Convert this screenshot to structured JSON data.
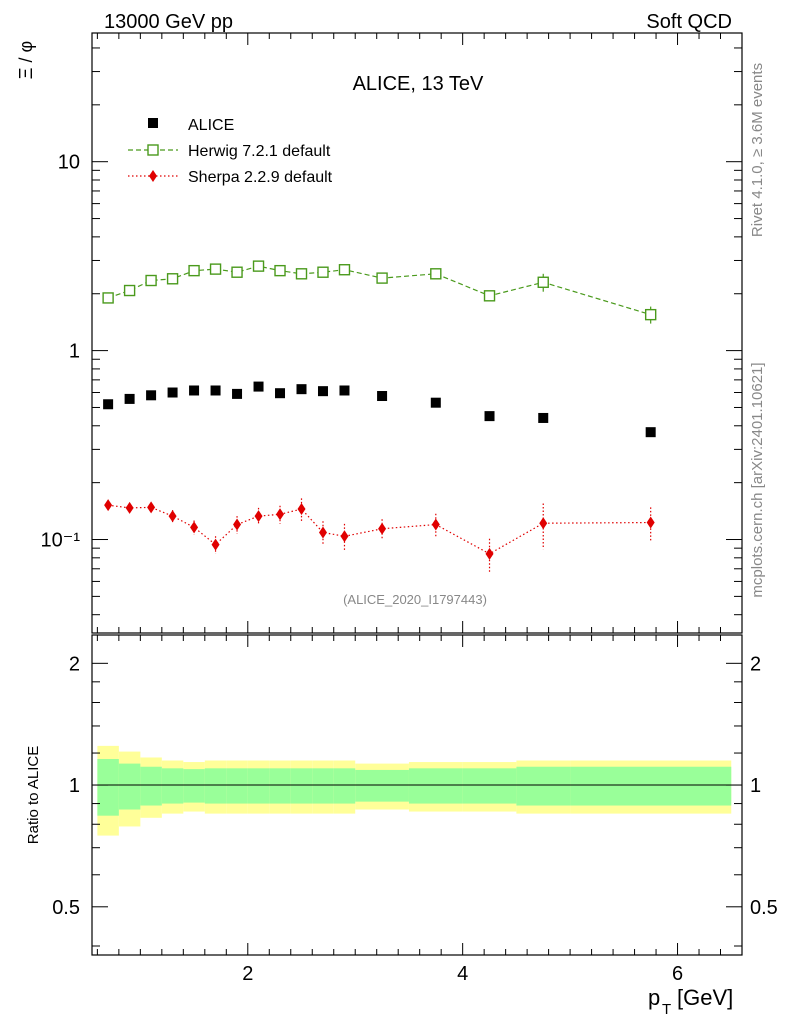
{
  "header": {
    "left": "13000 GeV pp",
    "right": "Soft QCD"
  },
  "side": {
    "rivet": "Rivet 4.1.0, ≥ 3.6M events",
    "mcplots": "mcplots.cern.ch [arXiv:2401.10621]"
  },
  "chart_data": {
    "type": "scatter",
    "title": "ALICE, 13 TeV",
    "analysis_label": "(ALICE_2020_I1797443)",
    "ylabel": "Ξ / φ",
    "xlabel_main": "p",
    "xlabel_sub": "T",
    "xlabel_unit": "[GeV]",
    "ratio_ylabel": "Ratio to ALICE",
    "xlim": [
      0.55,
      6.6
    ],
    "ylim": [
      0.032,
      48
    ],
    "yscale": "log",
    "ratio_ylim": [
      0.38,
      2.35
    ],
    "ratio_yscale": "log",
    "x_ticks": [
      2,
      4,
      6
    ],
    "x_tick_labels": [
      "2",
      "4",
      "6"
    ],
    "y_tick_labels": {
      "0.1": "10⁻¹",
      "1": "1",
      "10": "10"
    },
    "ratio_ticks": [
      0.5,
      1,
      2
    ],
    "ratio_tick_labels": [
      "0.5",
      "1",
      "2"
    ],
    "x": [
      0.7,
      0.9,
      1.1,
      1.3,
      1.5,
      1.7,
      1.9,
      2.1,
      2.3,
      2.5,
      2.7,
      2.9,
      3.25,
      3.75,
      4.25,
      4.75,
      5.75
    ],
    "x_edges": [
      0.6,
      0.8,
      1.0,
      1.2,
      1.4,
      1.6,
      1.8,
      2.0,
      2.2,
      2.4,
      2.6,
      2.8,
      3.0,
      3.5,
      4.0,
      4.5,
      5.0,
      6.5
    ],
    "series": [
      {
        "name": "ALICE",
        "style": "square",
        "color": "#000000",
        "values": [
          0.52,
          0.555,
          0.58,
          0.6,
          0.615,
          0.615,
          0.59,
          0.645,
          0.595,
          0.625,
          0.61,
          0.615,
          0.575,
          0.53,
          0.45,
          0.44,
          0.37
        ]
      },
      {
        "name": "Herwig 7.2.1 default",
        "style": "open-square-dashed",
        "color": "#4a9a1c",
        "values": [
          1.9,
          2.08,
          2.35,
          2.4,
          2.65,
          2.7,
          2.6,
          2.8,
          2.65,
          2.55,
          2.6,
          2.68,
          2.42,
          2.55,
          1.95,
          2.3,
          1.55
        ],
        "errors": [
          0.05,
          0.05,
          0.06,
          0.06,
          0.07,
          0.07,
          0.07,
          0.08,
          0.07,
          0.07,
          0.07,
          0.07,
          0.07,
          0.09,
          0.1,
          0.25,
          0.16
        ]
      },
      {
        "name": "Sherpa 2.2.9 default",
        "style": "diamond-dotted",
        "color": "#e00000",
        "values": [
          0.152,
          0.147,
          0.148,
          0.133,
          0.116,
          0.094,
          0.12,
          0.133,
          0.136,
          0.145,
          0.109,
          0.104,
          0.114,
          0.12,
          0.084,
          0.122,
          0.123
        ],
        "errors": [
          0.006,
          0.007,
          0.008,
          0.01,
          0.01,
          0.01,
          0.013,
          0.014,
          0.015,
          0.02,
          0.016,
          0.017,
          0.014,
          0.017,
          0.017,
          0.033,
          0.025
        ]
      }
    ],
    "ratio_band_inner": [
      0.16,
      0.13,
      0.11,
      0.1,
      0.095,
      0.1,
      0.1,
      0.1,
      0.1,
      0.1,
      0.1,
      0.1,
      0.09,
      0.1,
      0.1,
      0.11,
      0.11
    ],
    "ratio_band_outer": [
      0.25,
      0.21,
      0.17,
      0.15,
      0.14,
      0.15,
      0.15,
      0.15,
      0.15,
      0.15,
      0.15,
      0.15,
      0.13,
      0.14,
      0.14,
      0.15,
      0.15
    ],
    "colors": {
      "band_inner": "#99ff99",
      "band_outer": "#ffff99"
    }
  }
}
